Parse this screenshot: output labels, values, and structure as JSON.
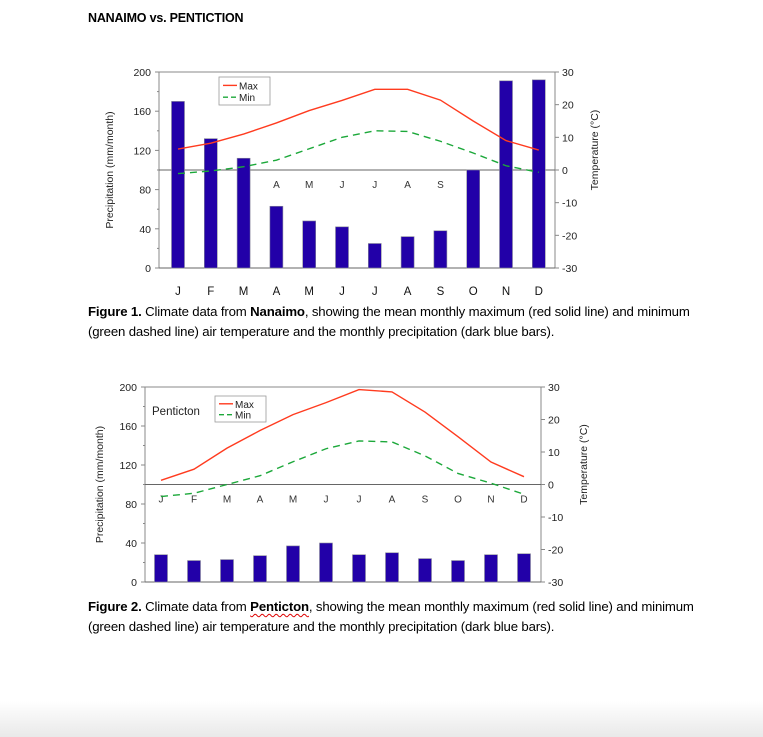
{
  "page": {
    "title": "NANAIMO vs. PENTICTION",
    "captions": [
      {
        "label": "Figure 1.",
        "pre": " Climate data from ",
        "place": "Nanaimo",
        "post": ", showing the mean monthly maximum (red solid line) and minimum (green dashed line) air temperature and the monthly precipitation (dark blue bars)."
      },
      {
        "label": "Figure 2.",
        "pre": " Climate data from ",
        "place": "Penticton",
        "post": ", showing the mean monthly maximum (red solid line) and minimum (green dashed line) air temperature and the monthly precipitation (dark blue bars)."
      }
    ]
  },
  "colors": {
    "bar": "#2200a8",
    "max": "#ff3b1f",
    "min": "#1ca83a",
    "axis": "#888888"
  },
  "chart_data": [
    {
      "type": "bar+line",
      "title": "",
      "categories": [
        "J",
        "F",
        "M",
        "A",
        "M",
        "J",
        "J",
        "A",
        "S",
        "O",
        "N",
        "D"
      ],
      "ylabel": "Precipitation (mm/month)",
      "ylabel_right": "Temperature (°C)",
      "ylim": [
        0,
        200
      ],
      "yticks": [
        0,
        40,
        80,
        120,
        160,
        200
      ],
      "ylim_right": [
        -30,
        30
      ],
      "yticks_right": [
        -30,
        -20,
        -10,
        0,
        10,
        20,
        30
      ],
      "legend": "top-left",
      "precipitation": [
        170,
        132,
        112,
        63,
        48,
        42,
        25,
        32,
        38,
        100,
        191,
        192
      ],
      "series": [
        {
          "name": "Max",
          "values": [
            6.4,
            8.2,
            11,
            14.4,
            18.2,
            21.3,
            24.7,
            24.7,
            21.4,
            15,
            9,
            6.1
          ]
        },
        {
          "name": "Min",
          "values": [
            -1.1,
            -0.3,
            1,
            3,
            6.5,
            10,
            12,
            11.8,
            8.8,
            5.2,
            1.3,
            -0.7
          ]
        }
      ]
    },
    {
      "type": "bar+line",
      "title": "Penticton",
      "categories": [
        "J",
        "F",
        "M",
        "A",
        "M",
        "J",
        "J",
        "A",
        "S",
        "O",
        "N",
        "D"
      ],
      "ylabel": "Precipitation (mm/month)",
      "ylabel_right": "Temperature (°C)",
      "ylim": [
        0,
        200
      ],
      "yticks": [
        0,
        40,
        80,
        120,
        160,
        200
      ],
      "ylim_right": [
        -30,
        30
      ],
      "yticks_right": [
        -30,
        -20,
        -10,
        0,
        10,
        20,
        30
      ],
      "legend": "top-left",
      "precipitation": [
        28,
        22,
        23,
        27,
        37,
        40,
        28,
        30,
        24,
        22,
        28,
        29
      ],
      "series": [
        {
          "name": "Max",
          "values": [
            1.3,
            4.7,
            11.2,
            16.6,
            21.5,
            25.2,
            29.2,
            28.5,
            22.3,
            14.7,
            6.9,
            2.4
          ]
        },
        {
          "name": "Min",
          "values": [
            -3.7,
            -2.7,
            0,
            2.7,
            7,
            11,
            13.4,
            13.1,
            8.8,
            3.4,
            0.4,
            -3
          ]
        }
      ]
    }
  ]
}
